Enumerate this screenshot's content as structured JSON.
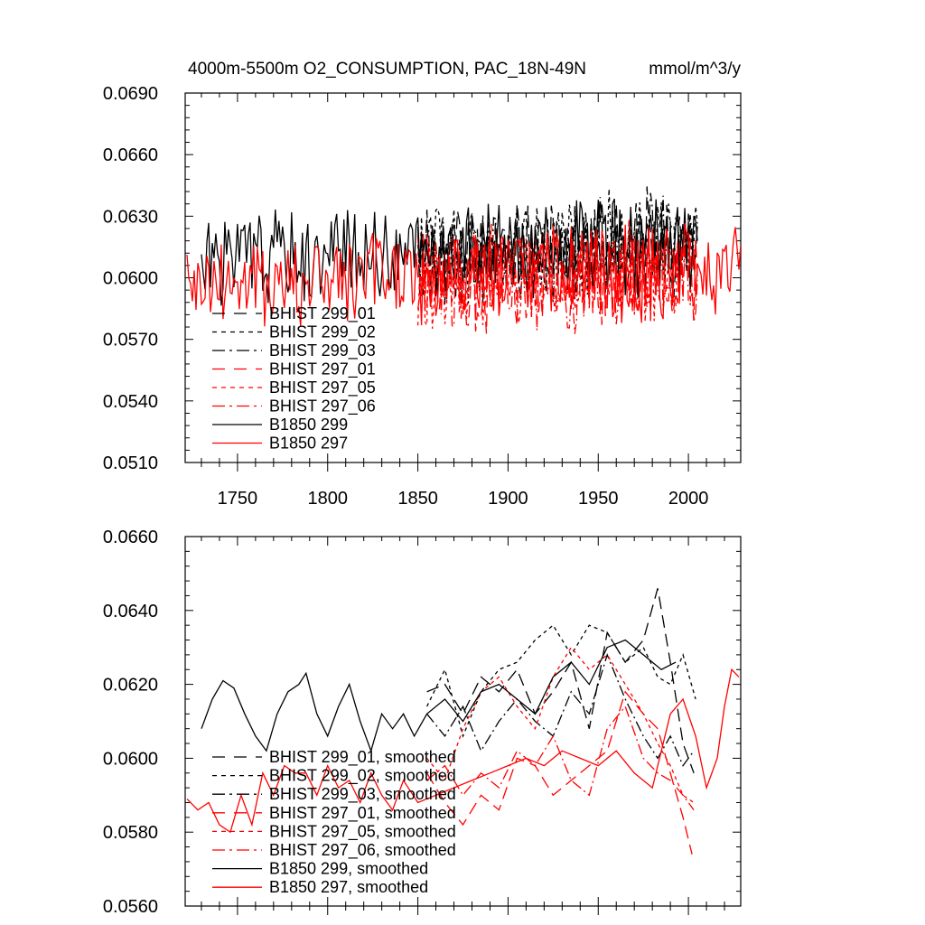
{
  "title": "4000m-5500m O2_CONSUMPTION, PAC_18N-49N",
  "units": "mmol/m^3/y",
  "colors": {
    "black": "#000000",
    "red": "#ff0000",
    "axis": "#000000",
    "background": "#ffffff"
  },
  "chart_data": [
    {
      "type": "line",
      "name": "annual",
      "xlim": [
        1721,
        2029
      ],
      "ylim": [
        0.051,
        0.069
      ],
      "xticks": [
        1750,
        1800,
        1850,
        1900,
        1950,
        2000
      ],
      "xtick_labels": [
        "1750",
        "1800",
        "1850",
        "1900",
        "1950",
        "2000"
      ],
      "yticks": [
        0.051,
        0.054,
        0.057,
        0.06,
        0.063,
        0.066,
        0.069
      ],
      "ytick_labels": [
        "0.0510",
        "0.0540",
        "0.0570",
        "0.0600",
        "0.0630",
        "0.0660",
        "0.0690"
      ],
      "legend_location": "lower-left",
      "series": [
        {
          "name": "BHIST 299_01",
          "color": "#000000",
          "dash": "long-dash",
          "x_start": 1850,
          "x_end": 2005,
          "mean": 0.0612,
          "amp": 0.002,
          "jitter": 0.0016,
          "seed": 11,
          "trend": 0.0006
        },
        {
          "name": "BHIST 299_02",
          "color": "#000000",
          "dash": "short-dash",
          "x_start": 1850,
          "x_end": 2005,
          "mean": 0.0613,
          "amp": 0.002,
          "jitter": 0.0016,
          "seed": 12,
          "trend": 0.0005
        },
        {
          "name": "BHIST 299_03",
          "color": "#000000",
          "dash": "dash-dot",
          "x_start": 1850,
          "x_end": 2005,
          "mean": 0.0611,
          "amp": 0.002,
          "jitter": 0.0016,
          "seed": 13,
          "trend": 0.0005
        },
        {
          "name": "BHIST 297_01",
          "color": "#ff0000",
          "dash": "long-dash",
          "x_start": 1850,
          "x_end": 2005,
          "mean": 0.0598,
          "amp": 0.002,
          "jitter": 0.0016,
          "seed": 21,
          "trend": 0.0004
        },
        {
          "name": "BHIST 297_05",
          "color": "#ff0000",
          "dash": "short-dash",
          "x_start": 1850,
          "x_end": 2005,
          "mean": 0.06,
          "amp": 0.002,
          "jitter": 0.0016,
          "seed": 22,
          "trend": 0.0004
        },
        {
          "name": "BHIST 297_06",
          "color": "#ff0000",
          "dash": "dash-dot",
          "x_start": 1850,
          "x_end": 2005,
          "mean": 0.0597,
          "amp": 0.002,
          "jitter": 0.0016,
          "seed": 23,
          "trend": 0.0003
        },
        {
          "name": "B1850 299",
          "color": "#000000",
          "dash": "solid",
          "x_start": 1730,
          "x_end": 2005,
          "mean": 0.061,
          "amp": 0.002,
          "jitter": 0.0012,
          "seed": 31,
          "trend": 0.0005
        },
        {
          "name": "B1850 297",
          "color": "#ff0000",
          "dash": "solid",
          "x_start": 1722,
          "x_end": 2029,
          "mean": 0.0596,
          "amp": 0.002,
          "jitter": 0.0012,
          "seed": 41,
          "trend": 0.0008
        }
      ]
    },
    {
      "type": "line",
      "name": "smoothed",
      "xlim": [
        1721,
        2029
      ],
      "ylim": [
        0.056,
        0.066
      ],
      "xticks": [
        1750,
        1800,
        1850,
        1900,
        1950,
        2000
      ],
      "xtick_labels": [],
      "yticks": [
        0.056,
        0.058,
        0.06,
        0.062,
        0.064,
        0.066
      ],
      "ytick_labels": [
        "0.0560",
        "0.0580",
        "0.0600",
        "0.0620",
        "0.0640",
        "0.0660"
      ],
      "legend_location": "lower-left",
      "series": [
        {
          "name": "BHIST 299_01, smoothed",
          "color": "#000000",
          "dash": "long-dash",
          "points": [
            [
              1855,
              0.0618
            ],
            [
              1865,
              0.062
            ],
            [
              1875,
              0.0612
            ],
            [
              1885,
              0.0622
            ],
            [
              1895,
              0.0618
            ],
            [
              1905,
              0.0624
            ],
            [
              1915,
              0.0612
            ],
            [
              1925,
              0.0618
            ],
            [
              1935,
              0.0626
            ],
            [
              1945,
              0.0608
            ],
            [
              1955,
              0.0634
            ],
            [
              1965,
              0.0626
            ],
            [
              1975,
              0.0632
            ],
            [
              1983,
              0.0646
            ],
            [
              1990,
              0.0626
            ],
            [
              1997,
              0.0604
            ],
            [
              2003,
              0.0596
            ]
          ]
        },
        {
          "name": "BHIST 299_02, smoothed",
          "color": "#000000",
          "dash": "short-dash",
          "points": [
            [
              1855,
              0.0614
            ],
            [
              1865,
              0.0624
            ],
            [
              1875,
              0.0606
            ],
            [
              1885,
              0.0618
            ],
            [
              1895,
              0.0624
            ],
            [
              1905,
              0.0626
            ],
            [
              1915,
              0.0632
            ],
            [
              1925,
              0.0636
            ],
            [
              1935,
              0.0628
            ],
            [
              1945,
              0.0636
            ],
            [
              1955,
              0.0634
            ],
            [
              1965,
              0.0626
            ],
            [
              1975,
              0.063
            ],
            [
              1983,
              0.0622
            ],
            [
              1990,
              0.062
            ],
            [
              1997,
              0.0628
            ],
            [
              2004,
              0.0616
            ]
          ]
        },
        {
          "name": "BHIST 299_03, smoothed",
          "color": "#000000",
          "dash": "dash-dot",
          "points": [
            [
              1855,
              0.0612
            ],
            [
              1865,
              0.0606
            ],
            [
              1875,
              0.0614
            ],
            [
              1885,
              0.0602
            ],
            [
              1895,
              0.061
            ],
            [
              1905,
              0.0616
            ],
            [
              1915,
              0.061
            ],
            [
              1925,
              0.0606
            ],
            [
              1935,
              0.0618
            ],
            [
              1945,
              0.0612
            ],
            [
              1955,
              0.0628
            ],
            [
              1965,
              0.0616
            ],
            [
              1975,
              0.0606
            ],
            [
              1983,
              0.06
            ],
            [
              1990,
              0.0606
            ],
            [
              1997,
              0.0598
            ],
            [
              2003,
              0.0602
            ]
          ]
        },
        {
          "name": "BHIST 297_01, smoothed",
          "color": "#ff0000",
          "dash": "long-dash",
          "points": [
            [
              1855,
              0.0596
            ],
            [
              1865,
              0.0588
            ],
            [
              1875,
              0.0582
            ],
            [
              1885,
              0.059
            ],
            [
              1895,
              0.0586
            ],
            [
              1905,
              0.06
            ],
            [
              1915,
              0.0598
            ],
            [
              1925,
              0.059
            ],
            [
              1935,
              0.0594
            ],
            [
              1945,
              0.0598
            ],
            [
              1955,
              0.0602
            ],
            [
              1965,
              0.0618
            ],
            [
              1975,
              0.0612
            ],
            [
              1983,
              0.0608
            ],
            [
              1990,
              0.0596
            ],
            [
              1997,
              0.0584
            ],
            [
              2002,
              0.0574
            ]
          ]
        },
        {
          "name": "BHIST 297_05, smoothed",
          "color": "#ff0000",
          "dash": "short-dash",
          "points": [
            [
              1855,
              0.06
            ],
            [
              1865,
              0.0594
            ],
            [
              1875,
              0.0608
            ],
            [
              1885,
              0.0618
            ],
            [
              1895,
              0.0622
            ],
            [
              1905,
              0.0614
            ],
            [
              1915,
              0.0608
            ],
            [
              1925,
              0.0622
            ],
            [
              1935,
              0.063
            ],
            [
              1945,
              0.0624
            ],
            [
              1955,
              0.0628
            ],
            [
              1965,
              0.062
            ],
            [
              1975,
              0.0612
            ],
            [
              1983,
              0.0604
            ],
            [
              1990,
              0.0598
            ],
            [
              1997,
              0.059
            ],
            [
              2003,
              0.0588
            ]
          ]
        },
        {
          "name": "BHIST 297_06, smoothed",
          "color": "#ff0000",
          "dash": "dash-dot",
          "points": [
            [
              1855,
              0.0594
            ],
            [
              1865,
              0.0598
            ],
            [
              1875,
              0.059
            ],
            [
              1885,
              0.0596
            ],
            [
              1895,
              0.0592
            ],
            [
              1905,
              0.0602
            ],
            [
              1915,
              0.0598
            ],
            [
              1925,
              0.0606
            ],
            [
              1935,
              0.0594
            ],
            [
              1945,
              0.059
            ],
            [
              1955,
              0.0608
            ],
            [
              1965,
              0.0614
            ],
            [
              1975,
              0.06
            ],
            [
              1983,
              0.0596
            ],
            [
              1990,
              0.0594
            ],
            [
              1997,
              0.059
            ],
            [
              2003,
              0.0586
            ]
          ]
        },
        {
          "name": "B1850 299, smoothed",
          "color": "#000000",
          "dash": "solid",
          "points": [
            [
              1730,
              0.0608
            ],
            [
              1736,
              0.0616
            ],
            [
              1742,
              0.0621
            ],
            [
              1748,
              0.0619
            ],
            [
              1754,
              0.0612
            ],
            [
              1760,
              0.0606
            ],
            [
              1766,
              0.0602
            ],
            [
              1772,
              0.0612
            ],
            [
              1778,
              0.0618
            ],
            [
              1784,
              0.062
            ],
            [
              1788,
              0.0623
            ],
            [
              1794,
              0.0612
            ],
            [
              1800,
              0.0606
            ],
            [
              1806,
              0.0614
            ],
            [
              1812,
              0.062
            ],
            [
              1818,
              0.061
            ],
            [
              1824,
              0.0602
            ],
            [
              1830,
              0.0612
            ],
            [
              1836,
              0.0608
            ],
            [
              1842,
              0.0612
            ],
            [
              1848,
              0.0606
            ],
            [
              1855,
              0.0612
            ],
            [
              1865,
              0.0616
            ],
            [
              1875,
              0.061
            ],
            [
              1885,
              0.0618
            ],
            [
              1895,
              0.062
            ],
            [
              1905,
              0.0616
            ],
            [
              1915,
              0.0612
            ],
            [
              1925,
              0.0622
            ],
            [
              1935,
              0.0626
            ],
            [
              1945,
              0.062
            ],
            [
              1955,
              0.063
            ],
            [
              1965,
              0.0632
            ],
            [
              1975,
              0.0628
            ],
            [
              1985,
              0.0624
            ],
            [
              1993,
              0.0626
            ]
          ]
        },
        {
          "name": "B1850 297, smoothed",
          "color": "#ff0000",
          "dash": "solid",
          "points": [
            [
              1722,
              0.0589
            ],
            [
              1728,
              0.0586
            ],
            [
              1734,
              0.0588
            ],
            [
              1740,
              0.0582
            ],
            [
              1746,
              0.058
            ],
            [
              1752,
              0.059
            ],
            [
              1758,
              0.0582
            ],
            [
              1764,
              0.0596
            ],
            [
              1770,
              0.059
            ],
            [
              1776,
              0.0598
            ],
            [
              1782,
              0.0596
            ],
            [
              1788,
              0.0596
            ],
            [
              1794,
              0.059
            ],
            [
              1800,
              0.0598
            ],
            [
              1806,
              0.0592
            ],
            [
              1812,
              0.0594
            ],
            [
              1818,
              0.0588
            ],
            [
              1824,
              0.0596
            ],
            [
              1830,
              0.059
            ],
            [
              1836,
              0.0586
            ],
            [
              1842,
              0.0594
            ],
            [
              1850,
              0.0588
            ],
            [
              1860,
              0.059
            ],
            [
              1870,
              0.0592
            ],
            [
              1880,
              0.0594
            ],
            [
              1890,
              0.0596
            ],
            [
              1900,
              0.0598
            ],
            [
              1910,
              0.06
            ],
            [
              1920,
              0.0598
            ],
            [
              1930,
              0.0602
            ],
            [
              1940,
              0.06
            ],
            [
              1950,
              0.0598
            ],
            [
              1960,
              0.0602
            ],
            [
              1970,
              0.0596
            ],
            [
              1980,
              0.0592
            ],
            [
              1990,
              0.0612
            ],
            [
              1997,
              0.0616
            ],
            [
              2004,
              0.0606
            ],
            [
              2010,
              0.0592
            ],
            [
              2016,
              0.06
            ],
            [
              2020,
              0.0614
            ],
            [
              2024,
              0.0624
            ],
            [
              2028,
              0.0622
            ]
          ]
        }
      ]
    }
  ]
}
